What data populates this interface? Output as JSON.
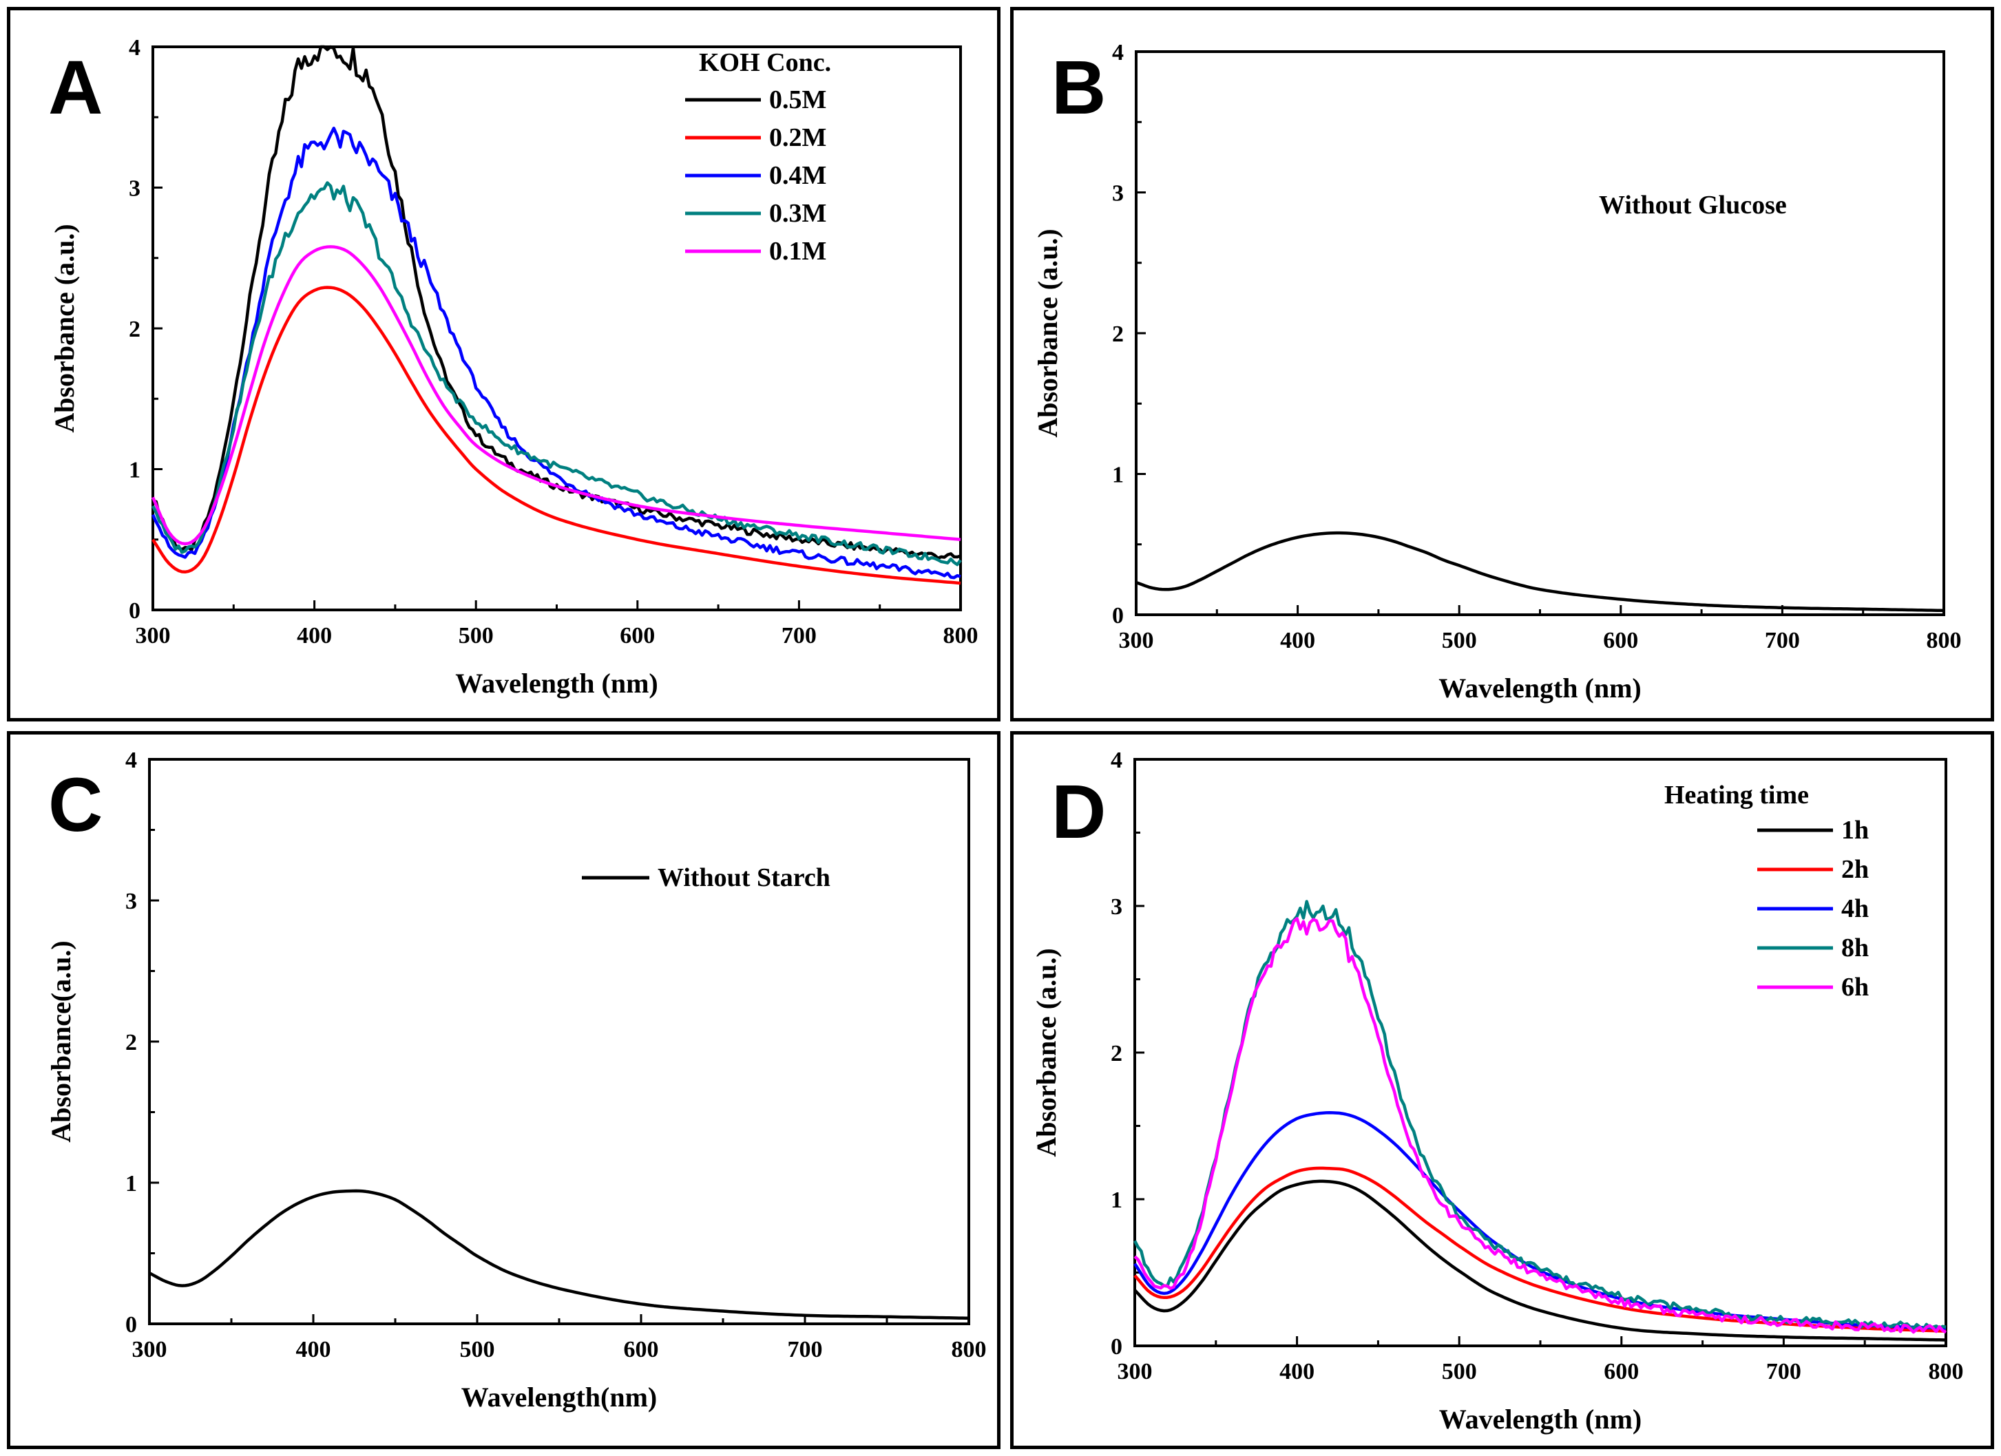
{
  "chart_data": [
    {
      "panel": "A",
      "type": "line",
      "letter": "A",
      "xlabel": "Wavelength (nm)",
      "ylabel": "Absorbance (a.u.)",
      "xlim": [
        300,
        800
      ],
      "ylim": [
        0,
        4
      ],
      "xticks": [
        300,
        400,
        500,
        600,
        700,
        800
      ],
      "yticks": [
        0,
        1,
        2,
        3,
        4
      ],
      "legend_title": "KOH Conc.",
      "legend_position": "top-right",
      "series": [
        {
          "name": "0.5M",
          "color": "#000000",
          "noisy": true,
          "x": [
            300,
            310,
            320,
            330,
            340,
            350,
            360,
            370,
            380,
            390,
            400,
            410,
            420,
            430,
            440,
            450,
            460,
            470,
            480,
            490,
            500,
            520,
            550,
            600,
            650,
            700,
            750,
            800
          ],
          "y": [
            0.8,
            0.55,
            0.42,
            0.55,
            0.9,
            1.5,
            2.2,
            2.9,
            3.45,
            3.85,
            3.98,
            4.0,
            3.95,
            3.85,
            3.6,
            3.1,
            2.55,
            2.05,
            1.7,
            1.45,
            1.25,
            1.05,
            0.88,
            0.72,
            0.6,
            0.5,
            0.43,
            0.37
          ]
        },
        {
          "name": "0.2M",
          "color": "#ff0000",
          "noisy": false,
          "x": [
            300,
            310,
            320,
            330,
            340,
            350,
            360,
            370,
            380,
            390,
            400,
            410,
            420,
            430,
            440,
            450,
            460,
            470,
            480,
            490,
            500,
            520,
            550,
            600,
            650,
            700,
            750,
            800
          ],
          "y": [
            0.5,
            0.33,
            0.27,
            0.35,
            0.6,
            0.95,
            1.35,
            1.7,
            1.98,
            2.18,
            2.27,
            2.29,
            2.25,
            2.15,
            2.0,
            1.82,
            1.62,
            1.43,
            1.27,
            1.13,
            1.0,
            0.82,
            0.65,
            0.5,
            0.4,
            0.31,
            0.24,
            0.19
          ]
        },
        {
          "name": "0.4M",
          "color": "#0000ff",
          "noisy": true,
          "x": [
            300,
            310,
            320,
            330,
            340,
            350,
            360,
            370,
            380,
            390,
            400,
            410,
            420,
            430,
            440,
            450,
            460,
            470,
            480,
            490,
            500,
            520,
            550,
            600,
            650,
            700,
            750,
            800
          ],
          "y": [
            0.7,
            0.45,
            0.38,
            0.48,
            0.8,
            1.3,
            1.85,
            2.4,
            2.85,
            3.15,
            3.3,
            3.35,
            3.32,
            3.25,
            3.1,
            2.9,
            2.65,
            2.38,
            2.1,
            1.85,
            1.6,
            1.25,
            0.95,
            0.68,
            0.52,
            0.4,
            0.31,
            0.24
          ]
        },
        {
          "name": "0.3M",
          "color": "#008080",
          "noisy": true,
          "x": [
            300,
            310,
            320,
            330,
            340,
            350,
            360,
            370,
            380,
            390,
            400,
            410,
            420,
            430,
            440,
            450,
            460,
            470,
            480,
            490,
            500,
            520,
            550,
            600,
            650,
            700,
            750,
            800
          ],
          "y": [
            0.75,
            0.5,
            0.43,
            0.53,
            0.85,
            1.3,
            1.8,
            2.25,
            2.6,
            2.83,
            2.95,
            2.98,
            2.92,
            2.78,
            2.55,
            2.3,
            2.05,
            1.82,
            1.62,
            1.47,
            1.35,
            1.17,
            1.02,
            0.82,
            0.65,
            0.53,
            0.43,
            0.34
          ]
        },
        {
          "name": "0.1M",
          "color": "#ff00ff",
          "noisy": false,
          "x": [
            300,
            310,
            320,
            330,
            340,
            350,
            360,
            370,
            380,
            390,
            400,
            410,
            420,
            430,
            440,
            450,
            460,
            470,
            480,
            490,
            500,
            520,
            550,
            600,
            650,
            700,
            750,
            800
          ],
          "y": [
            0.8,
            0.55,
            0.47,
            0.55,
            0.8,
            1.15,
            1.55,
            1.93,
            2.23,
            2.45,
            2.55,
            2.58,
            2.55,
            2.45,
            2.3,
            2.1,
            1.88,
            1.65,
            1.45,
            1.3,
            1.17,
            1.02,
            0.88,
            0.74,
            0.66,
            0.6,
            0.55,
            0.5
          ]
        }
      ]
    },
    {
      "panel": "B",
      "type": "line",
      "letter": "B",
      "xlabel": "Wavelength (nm)",
      "ylabel": "Absorbance (a.u.)",
      "xlim": [
        300,
        800
      ],
      "ylim": [
        0,
        4
      ],
      "xticks": [
        300,
        400,
        500,
        600,
        700,
        800
      ],
      "yticks": [
        0,
        1,
        2,
        3,
        4
      ],
      "annotation": "Without Glucose",
      "series": [
        {
          "name": "Without Glucose",
          "color": "#000000",
          "noisy": false,
          "x": [
            300,
            310,
            320,
            330,
            340,
            350,
            360,
            370,
            380,
            390,
            400,
            410,
            420,
            430,
            440,
            450,
            460,
            470,
            480,
            490,
            500,
            520,
            550,
            600,
            650,
            700,
            750,
            800
          ],
          "y": [
            0.23,
            0.19,
            0.18,
            0.2,
            0.25,
            0.31,
            0.37,
            0.43,
            0.48,
            0.52,
            0.55,
            0.57,
            0.58,
            0.58,
            0.57,
            0.55,
            0.52,
            0.48,
            0.44,
            0.39,
            0.35,
            0.27,
            0.18,
            0.11,
            0.07,
            0.05,
            0.04,
            0.03
          ]
        }
      ]
    },
    {
      "panel": "C",
      "type": "line",
      "letter": "C",
      "xlabel": "Wavelength(nm)",
      "ylabel": "Absorbance(a.u.)",
      "xlim": [
        300,
        800
      ],
      "ylim": [
        0,
        4
      ],
      "xticks": [
        300,
        400,
        500,
        600,
        700,
        800
      ],
      "yticks": [
        0,
        1,
        2,
        3,
        4
      ],
      "legend_position": "top-right",
      "series": [
        {
          "name": "Without Starch",
          "color": "#000000",
          "noisy": false,
          "x": [
            300,
            310,
            320,
            330,
            340,
            350,
            360,
            370,
            380,
            390,
            400,
            410,
            420,
            430,
            440,
            450,
            460,
            470,
            480,
            490,
            500,
            520,
            550,
            600,
            650,
            700,
            750,
            800
          ],
          "y": [
            0.36,
            0.3,
            0.27,
            0.3,
            0.38,
            0.48,
            0.59,
            0.69,
            0.78,
            0.85,
            0.9,
            0.93,
            0.94,
            0.94,
            0.92,
            0.88,
            0.81,
            0.73,
            0.64,
            0.56,
            0.48,
            0.36,
            0.25,
            0.14,
            0.09,
            0.06,
            0.05,
            0.04
          ]
        }
      ]
    },
    {
      "panel": "D",
      "type": "line",
      "letter": "D",
      "xlabel": "Wavelength (nm)",
      "ylabel": "Absorbance (a.u.)",
      "xlim": [
        300,
        800
      ],
      "ylim": [
        0,
        4
      ],
      "xticks": [
        300,
        400,
        500,
        600,
        700,
        800
      ],
      "yticks": [
        0,
        1,
        2,
        3,
        4
      ],
      "legend_title": "Heating time",
      "legend_position": "top-right",
      "series": [
        {
          "name": "1h",
          "color": "#000000",
          "noisy": false,
          "x": [
            300,
            310,
            320,
            330,
            340,
            350,
            360,
            370,
            380,
            390,
            400,
            410,
            420,
            430,
            440,
            450,
            460,
            470,
            480,
            490,
            500,
            520,
            550,
            600,
            650,
            700,
            750,
            800
          ],
          "y": [
            0.38,
            0.27,
            0.24,
            0.3,
            0.42,
            0.58,
            0.74,
            0.88,
            0.98,
            1.06,
            1.1,
            1.12,
            1.12,
            1.1,
            1.05,
            0.97,
            0.88,
            0.78,
            0.68,
            0.59,
            0.51,
            0.37,
            0.24,
            0.12,
            0.08,
            0.06,
            0.05,
            0.04
          ]
        },
        {
          "name": "2h",
          "color": "#ff0000",
          "noisy": false,
          "x": [
            300,
            310,
            320,
            330,
            340,
            350,
            360,
            370,
            380,
            390,
            400,
            410,
            420,
            430,
            440,
            450,
            460,
            470,
            480,
            490,
            500,
            520,
            550,
            600,
            650,
            700,
            750,
            800
          ],
          "y": [
            0.48,
            0.36,
            0.33,
            0.38,
            0.5,
            0.66,
            0.82,
            0.96,
            1.07,
            1.14,
            1.19,
            1.21,
            1.21,
            1.2,
            1.16,
            1.1,
            1.02,
            0.93,
            0.84,
            0.76,
            0.68,
            0.54,
            0.4,
            0.26,
            0.19,
            0.15,
            0.12,
            0.1
          ]
        },
        {
          "name": "4h",
          "color": "#0000ff",
          "noisy": false,
          "x": [
            300,
            310,
            320,
            330,
            340,
            350,
            360,
            370,
            380,
            390,
            400,
            410,
            420,
            430,
            440,
            450,
            460,
            470,
            480,
            490,
            500,
            520,
            550,
            600,
            650,
            700,
            750,
            800
          ],
          "y": [
            0.56,
            0.4,
            0.36,
            0.45,
            0.62,
            0.83,
            1.04,
            1.22,
            1.37,
            1.48,
            1.55,
            1.58,
            1.59,
            1.58,
            1.54,
            1.47,
            1.38,
            1.27,
            1.15,
            1.03,
            0.92,
            0.72,
            0.51,
            0.32,
            0.23,
            0.18,
            0.14,
            0.12
          ]
        },
        {
          "name": "8h",
          "color": "#008080",
          "noisy": true,
          "x": [
            300,
            310,
            320,
            330,
            340,
            350,
            360,
            370,
            380,
            390,
            400,
            410,
            420,
            430,
            440,
            450,
            460,
            470,
            480,
            490,
            500,
            520,
            550,
            600,
            650,
            700,
            750,
            800
          ],
          "y": [
            0.72,
            0.5,
            0.43,
            0.55,
            0.85,
            1.3,
            1.8,
            2.25,
            2.6,
            2.82,
            2.93,
            2.97,
            2.95,
            2.85,
            2.6,
            2.25,
            1.85,
            1.5,
            1.23,
            1.04,
            0.9,
            0.7,
            0.52,
            0.34,
            0.24,
            0.18,
            0.15,
            0.13
          ]
        },
        {
          "name": "6h",
          "color": "#ff00ff",
          "noisy": true,
          "x": [
            300,
            310,
            320,
            330,
            340,
            350,
            360,
            370,
            380,
            390,
            400,
            410,
            420,
            430,
            440,
            450,
            460,
            470,
            480,
            490,
            500,
            520,
            550,
            600,
            650,
            700,
            750,
            800
          ],
          "y": [
            0.62,
            0.45,
            0.4,
            0.5,
            0.82,
            1.28,
            1.78,
            2.22,
            2.55,
            2.75,
            2.85,
            2.88,
            2.85,
            2.72,
            2.48,
            2.1,
            1.72,
            1.38,
            1.13,
            0.96,
            0.84,
            0.66,
            0.48,
            0.3,
            0.21,
            0.16,
            0.13,
            0.11
          ]
        }
      ]
    }
  ]
}
